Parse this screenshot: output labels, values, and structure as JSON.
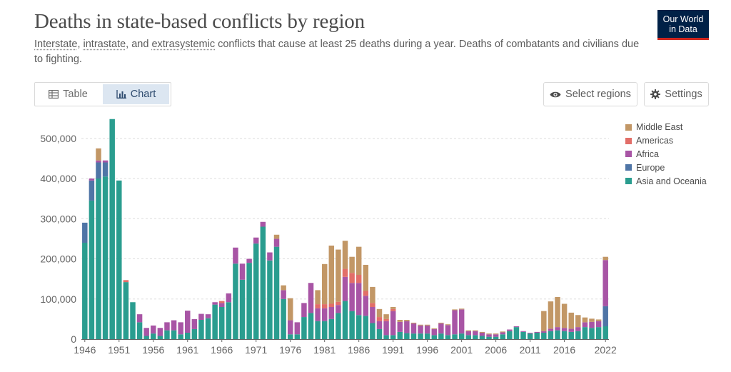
{
  "header": {
    "title": "Deaths in state-based conflicts by region",
    "subtitle_parts": {
      "interstate": "Interstate",
      "sep1": ", ",
      "intrastate": "intrastate",
      "sep2": ", and ",
      "extrasystemic": "extrasystemic",
      "rest": " conflicts that cause at least 25 deaths during a year. Deaths of combatants and civilians due to fighting."
    },
    "logo_line1": "Our World",
    "logo_line2": "in Data"
  },
  "tabs": [
    {
      "label": "Table",
      "icon": "table-icon",
      "active": false
    },
    {
      "label": "Chart",
      "icon": "chart-icon",
      "active": true
    }
  ],
  "controls": {
    "select_regions": "Select regions",
    "settings": "Settings"
  },
  "colors": {
    "Middle East": "#c29766",
    "Americas": "#e26e68",
    "Africa": "#a855a5",
    "Europe": "#4f75a6",
    "Asia and Oceania": "#2a9d8f"
  },
  "chart_data": {
    "type": "bar",
    "stacked": true,
    "title": "Deaths in state-based conflicts by region",
    "ylim": [
      0,
      560000
    ],
    "yticks": [
      0,
      100000,
      200000,
      300000,
      400000,
      500000
    ],
    "ytick_labels": [
      "0",
      "100,000",
      "200,000",
      "300,000",
      "400,000",
      "500,000"
    ],
    "xtick_labels": [
      "1946",
      "1951",
      "1956",
      "1961",
      "1966",
      "1971",
      "1976",
      "1981",
      "1986",
      "1991",
      "1996",
      "2001",
      "2006",
      "2011",
      "2016",
      "2022"
    ],
    "legend": [
      "Middle East",
      "Americas",
      "Africa",
      "Europe",
      "Asia and Oceania"
    ],
    "categories": [
      1946,
      1947,
      1948,
      1949,
      1950,
      1951,
      1952,
      1953,
      1954,
      1955,
      1956,
      1957,
      1958,
      1959,
      1960,
      1961,
      1962,
      1963,
      1964,
      1965,
      1966,
      1967,
      1968,
      1969,
      1970,
      1971,
      1972,
      1973,
      1974,
      1975,
      1976,
      1977,
      1978,
      1979,
      1980,
      1981,
      1982,
      1983,
      1984,
      1985,
      1986,
      1987,
      1988,
      1989,
      1990,
      1991,
      1992,
      1993,
      1994,
      1995,
      1996,
      1997,
      1998,
      1999,
      2000,
      2001,
      2002,
      2003,
      2004,
      2005,
      2006,
      2007,
      2008,
      2009,
      2010,
      2011,
      2012,
      2013,
      2014,
      2015,
      2016,
      2017,
      2018,
      2019,
      2020,
      2021,
      2022
    ],
    "series": [
      {
        "name": "Asia and Oceania",
        "values": [
          240000,
          345000,
          400000,
          405000,
          548000,
          395000,
          142000,
          92000,
          42000,
          8000,
          14000,
          8000,
          22000,
          22000,
          12000,
          16000,
          25000,
          48000,
          52000,
          86000,
          80000,
          92000,
          188000,
          148000,
          190000,
          238000,
          280000,
          196000,
          230000,
          100000,
          12000,
          12000,
          55000,
          65000,
          45000,
          45000,
          50000,
          65000,
          95000,
          70000,
          60000,
          58000,
          40000,
          25000,
          10000,
          10000,
          18000,
          15000,
          14000,
          14000,
          14000,
          10000,
          14000,
          10000,
          12000,
          14000,
          10000,
          10000,
          8000,
          6000,
          6000,
          12000,
          20000,
          30000,
          18000,
          14000,
          16000,
          16000,
          20000,
          22000,
          20000,
          18000,
          20000,
          30000,
          28000,
          30000,
          32000
        ]
      },
      {
        "name": "Europe",
        "values": [
          50000,
          50000,
          40000,
          35000,
          0,
          0,
          0,
          0,
          0,
          0,
          0,
          0,
          0,
          0,
          0,
          0,
          0,
          0,
          0,
          0,
          0,
          0,
          0,
          0,
          0,
          0,
          0,
          0,
          0,
          0,
          0,
          0,
          0,
          0,
          0,
          0,
          0,
          0,
          0,
          0,
          0,
          0,
          0,
          0,
          0,
          0,
          0,
          0,
          0,
          0,
          0,
          0,
          0,
          0,
          0,
          0,
          0,
          0,
          0,
          0,
          0,
          0,
          0,
          0,
          0,
          0,
          0,
          0,
          0,
          0,
          0,
          0,
          0,
          0,
          0,
          0,
          50000
        ]
      },
      {
        "name": "Africa",
        "values": [
          0,
          5000,
          5000,
          5000,
          0,
          0,
          0,
          0,
          20000,
          20000,
          20000,
          20000,
          20000,
          25000,
          30000,
          55000,
          25000,
          15000,
          10000,
          6000,
          10000,
          22000,
          40000,
          40000,
          10000,
          15000,
          12000,
          20000,
          20000,
          22000,
          35000,
          30000,
          35000,
          75000,
          32000,
          32000,
          30000,
          20000,
          60000,
          70000,
          80000,
          50000,
          40000,
          20000,
          35000,
          60000,
          25000,
          30000,
          25000,
          20000,
          20000,
          15000,
          25000,
          25000,
          60000,
          60000,
          10000,
          10000,
          8000,
          6000,
          6000,
          5000,
          4000,
          2000,
          2000,
          2000,
          2000,
          4000,
          6000,
          8000,
          8000,
          8000,
          10000,
          12000,
          15000,
          15000,
          115000
        ]
      },
      {
        "name": "Americas",
        "values": [
          0,
          0,
          0,
          0,
          0,
          0,
          5000,
          0,
          0,
          0,
          0,
          0,
          0,
          0,
          0,
          0,
          0,
          0,
          0,
          0,
          5000,
          0,
          0,
          0,
          0,
          0,
          0,
          0,
          0,
          0,
          0,
          0,
          0,
          0,
          10000,
          10000,
          8000,
          8000,
          20000,
          25000,
          20000,
          12000,
          10000,
          10000,
          5000,
          5000,
          0,
          0,
          0,
          0,
          0,
          0,
          0,
          0,
          0,
          0,
          0,
          0,
          0,
          0,
          0,
          0,
          0,
          0,
          0,
          0,
          0,
          0,
          0,
          0,
          0,
          0,
          0,
          0,
          0,
          0,
          0
        ]
      },
      {
        "name": "Middle East",
        "values": [
          0,
          0,
          30000,
          0,
          0,
          0,
          0,
          0,
          0,
          0,
          0,
          0,
          0,
          0,
          0,
          0,
          0,
          0,
          0,
          0,
          0,
          0,
          0,
          0,
          0,
          0,
          0,
          0,
          10000,
          12000,
          55000,
          0,
          0,
          0,
          35000,
          100000,
          145000,
          130000,
          70000,
          40000,
          70000,
          65000,
          40000,
          20000,
          12000,
          5000,
          5000,
          3000,
          2000,
          2000,
          2000,
          2000,
          2000,
          2000,
          2000,
          2000,
          2000,
          2000,
          2000,
          2000,
          2000,
          2000,
          0,
          0,
          0,
          0,
          0,
          50000,
          68000,
          75000,
          60000,
          40000,
          30000,
          12000,
          8000,
          4000,
          8000
        ]
      }
    ]
  }
}
